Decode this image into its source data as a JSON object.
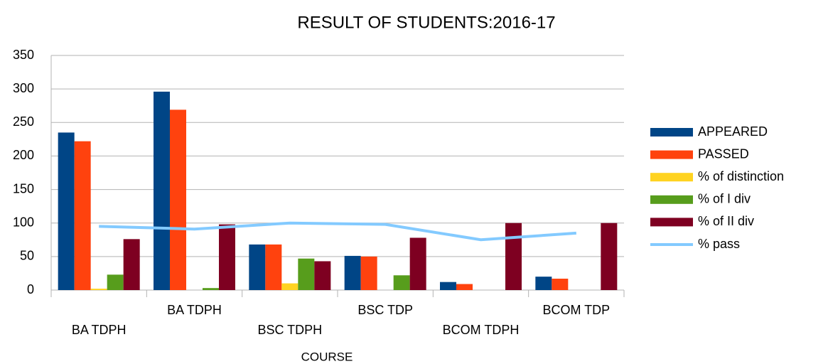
{
  "chart_data": {
    "type": "bar",
    "title": "RESULT OF STUDENTS:2016-17",
    "x_label": "COURSE",
    "categories": [
      "BA TDPH",
      "BA TDPH",
      "BSC TDPH",
      "BSC TDP",
      "BCOM TDPH",
      "BCOM TDP"
    ],
    "series": [
      {
        "name": "APPEARED",
        "color": "#004586",
        "values": [
          235,
          296,
          68,
          51,
          12,
          20
        ]
      },
      {
        "name": "PASSED",
        "color": "#ff420e",
        "values": [
          222,
          269,
          68,
          50,
          9,
          17
        ]
      },
      {
        "name": "% of distinction",
        "color": "#ffd320",
        "values": [
          2,
          0,
          10,
          0,
          0,
          0
        ]
      },
      {
        "name": "% of I div",
        "color": "#579d1c",
        "values": [
          23,
          3,
          47,
          22,
          0,
          0
        ]
      },
      {
        "name": "% of II div",
        "color": "#7e0021",
        "values": [
          76,
          98,
          43,
          78,
          100,
          100
        ]
      },
      {
        "name": "% pass",
        "color": "#83caff",
        "type": "line",
        "values": [
          95,
          91,
          100,
          98,
          75,
          85
        ]
      }
    ],
    "ylim": [
      0,
      350
    ],
    "yticks": [
      0,
      50,
      100,
      150,
      200,
      250,
      300,
      350
    ],
    "grid": true,
    "legend": "right"
  }
}
